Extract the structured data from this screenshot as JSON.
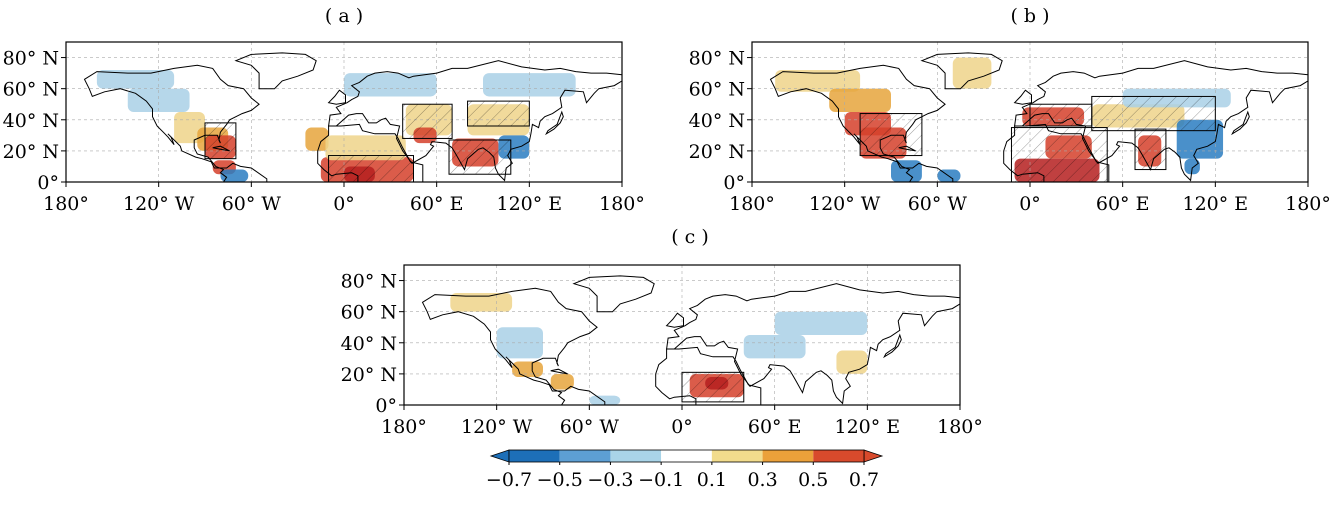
{
  "chart_data": [
    {
      "type": "heatmap",
      "panel_label": "( a )",
      "xlim": [
        -180,
        180
      ],
      "ylim": [
        0,
        90
      ],
      "x_ticks": [
        -180,
        -120,
        -60,
        0,
        60,
        120,
        180
      ],
      "x_tick_labels": [
        "180°",
        "120° W",
        "60° W",
        "0°",
        "60° E",
        "120° E",
        "180°"
      ],
      "y_ticks": [
        0,
        20,
        40,
        60,
        80
      ],
      "y_tick_labels": [
        "0°",
        "20° N",
        "40° N",
        "60° N",
        "80° N"
      ],
      "grid": true,
      "regions": [
        {
          "lon": [
            -90,
            -70
          ],
          "lat": [
            15,
            38
          ]
        },
        {
          "lon": [
            -10,
            45
          ],
          "lat": [
            0,
            17
          ]
        },
        {
          "lon": [
            38,
            70
          ],
          "lat": [
            28,
            50
          ]
        },
        {
          "lon": [
            68,
            108
          ],
          "lat": [
            5,
            27
          ]
        },
        {
          "lon": [
            80,
            120
          ],
          "lat": [
            36,
            52
          ]
        }
      ]
    },
    {
      "type": "heatmap",
      "panel_label": "( b )",
      "xlim": [
        -180,
        180
      ],
      "ylim": [
        0,
        90
      ],
      "x_ticks": [
        -180,
        -120,
        -60,
        0,
        60,
        120,
        180
      ],
      "x_tick_labels": [
        "180°",
        "120° W",
        "60° W",
        "0°",
        "60° E",
        "120° E",
        "180°"
      ],
      "y_ticks": [
        0,
        20,
        40,
        60,
        80
      ],
      "y_tick_labels": [
        "0°",
        "20° N",
        "40° N",
        "60° N",
        "80° N"
      ],
      "grid": true,
      "regions": [
        {
          "lon": [
            -110,
            -70
          ],
          "lat": [
            17,
            44
          ]
        },
        {
          "lon": [
            -12,
            50
          ],
          "lat": [
            0,
            35
          ]
        },
        {
          "lon": [
            0,
            40
          ],
          "lat": [
            36,
            50
          ]
        },
        {
          "lon": [
            40,
            120
          ],
          "lat": [
            33,
            55
          ]
        },
        {
          "lon": [
            68,
            88
          ],
          "lat": [
            8,
            34
          ]
        }
      ]
    },
    {
      "type": "heatmap",
      "panel_label": "( c )",
      "xlim": [
        -180,
        180
      ],
      "ylim": [
        0,
        90
      ],
      "x_ticks": [
        -180,
        -120,
        -60,
        0,
        60,
        120,
        180
      ],
      "x_tick_labels": [
        "180°",
        "120° W",
        "60° W",
        "0°",
        "60° E",
        "120° E",
        "180°"
      ],
      "y_ticks": [
        0,
        20,
        40,
        60,
        80
      ],
      "y_tick_labels": [
        "0°",
        "20° N",
        "40° N",
        "60° N",
        "80° N"
      ],
      "grid": true,
      "regions": [
        {
          "lon": [
            0,
            40
          ],
          "lat": [
            2,
            21
          ]
        }
      ]
    }
  ],
  "colorbar": {
    "tick_labels": [
      "−0.7",
      "−0.5",
      "−0.3",
      "−0.1",
      "0.1",
      "0.3",
      "0.5",
      "0.7"
    ],
    "colors": [
      "#1d6fb8",
      "#5d9fd4",
      "#a9d4e8",
      "#ffffff",
      "#f2dc8c",
      "#eba13a",
      "#d84a2c"
    ],
    "extend": "both",
    "under_color": "#1d6fb8",
    "over_color": "#d84a2c"
  },
  "palette": {
    "blue": "#2a7cc1",
    "light_blue": "#a9d0e6",
    "yellow": "#efd48a",
    "orange": "#e6a43c",
    "red": "#d5402a",
    "dark_red": "#b51f1f"
  }
}
